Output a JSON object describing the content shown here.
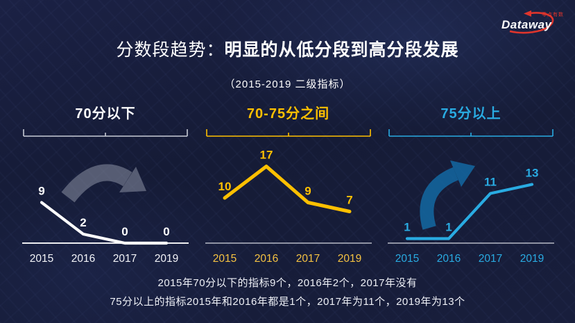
{
  "logo": {
    "text": "Dataway",
    "tagline": "零点有数",
    "accent_color": "#e0352c"
  },
  "header": {
    "title_prefix": "分数段趋势：",
    "title_emphasis": "明显的从低分段到高分段发展",
    "subtitle": "（2015-2019 二级指标）"
  },
  "chart_data": [
    {
      "type": "line",
      "title": "70分以下",
      "title_color": "#ffffff",
      "line_color": "#ffffff",
      "bracket_color": "#c7cbd6",
      "axis_color": "#ffffff",
      "label_color": "#ffffff",
      "tick_color": "#f2f3f7",
      "categories": [
        "2015",
        "2016",
        "2017",
        "2019"
      ],
      "values": [
        9,
        2,
        0,
        0
      ],
      "ylim": [
        0,
        20
      ],
      "legend": "none",
      "grid": false,
      "trend_arrow": {
        "direction": "down",
        "color": "#8c92a4",
        "opacity": 0.55
      }
    },
    {
      "type": "line",
      "title": "70-75分之间",
      "title_color": "#ffc000",
      "line_color": "#ffc000",
      "bracket_color": "#ffc000",
      "axis_color": "#e8eaf0",
      "label_color": "#ffc000",
      "tick_color": "#f5c242",
      "categories": [
        "2015",
        "2016",
        "2017",
        "2019"
      ],
      "values": [
        10,
        17,
        9,
        7
      ],
      "ylim": [
        0,
        20
      ],
      "legend": "none",
      "grid": false,
      "trend_arrow": null
    },
    {
      "type": "line",
      "title": "75分以上",
      "title_color": "#29abe2",
      "line_color": "#29abe2",
      "bracket_color": "#29abe2",
      "axis_color": "#e8eaf0",
      "label_color": "#29abe2",
      "tick_color": "#29abe2",
      "categories": [
        "2015",
        "2016",
        "2017",
        "2019"
      ],
      "values": [
        1,
        1,
        11,
        13
      ],
      "ylim": [
        0,
        20
      ],
      "legend": "none",
      "grid": false,
      "trend_arrow": {
        "direction": "up",
        "color": "#1368a2",
        "opacity": 0.85
      }
    }
  ],
  "footer": {
    "line1": "2015年70分以下的指标9个，2016年2个，2017年没有",
    "line2": "75分以上的指标2015年和2016年都是1个，2017年为11个，2019年为13个"
  }
}
